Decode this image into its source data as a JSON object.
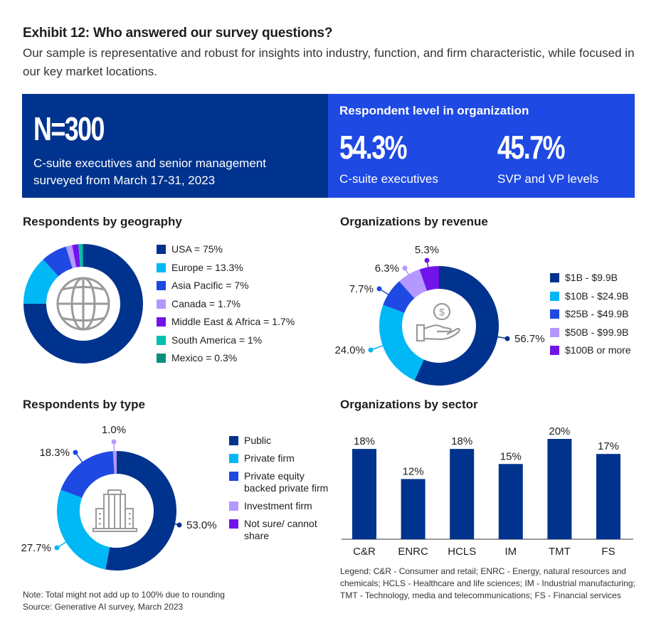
{
  "header": {
    "title": "Exhibit 12: Who answered our survey questions?",
    "subtitle": "Our sample is representative and robust for insights into industry, function, and firm characteristic, while focused in our key market locations."
  },
  "summary": {
    "sample_size": "N=300",
    "description": "C-suite executives and senior management surveyed from March 17-31, 2023"
  },
  "respondent_level": {
    "title": "Respondent level in organization",
    "stats": [
      {
        "value": "54.3%",
        "label": "C-suite executives"
      },
      {
        "value": "45.7%",
        "label": "SVP and VP levels"
      }
    ]
  },
  "colors": {
    "navy": "#00338D",
    "blue": "#1E49E2",
    "cyan": "#00B8F5",
    "lavender": "#B497FF",
    "purple": "#7213EA",
    "teal": "#00C0AE",
    "dark_teal": "#098E7E",
    "icon_gray": "#9a9a9a"
  },
  "chart_data": [
    {
      "type": "pie",
      "title": "Respondents by geography",
      "center_icon": "globe-icon",
      "legend_position": "right",
      "categories": [
        "USA",
        "Europe",
        "Asia Pacific",
        "Canada",
        "Middle East & Africa",
        "South America",
        "Mexico"
      ],
      "values": [
        75,
        13.3,
        7,
        1.7,
        1.7,
        1,
        0.3
      ],
      "legend_labels": [
        "USA = 75%",
        "Europe = 13.3%",
        "Asia Pacific = 7%",
        "Canada = 1.7%",
        "Middle East & Africa = 1.7%",
        "South America = 1%",
        "Mexico = 0.3%"
      ],
      "colors": [
        "#00338D",
        "#00B8F5",
        "#1E49E2",
        "#B497FF",
        "#7213EA",
        "#00C0AE",
        "#098E7E"
      ],
      "data_labels": []
    },
    {
      "type": "pie",
      "title": "Organizations by revenue",
      "center_icon": "money-hand-icon",
      "legend_position": "right",
      "categories": [
        "$1B - $9.9B",
        "$10B - $24.9B",
        "$25B - $49.9B",
        "$50B - $99.9B",
        "$100B or more"
      ],
      "values": [
        56.7,
        24.0,
        7.7,
        6.3,
        5.3
      ],
      "legend_labels": [
        "$1B - $9.9B",
        "$10B - $24.9B",
        "$25B - $49.9B",
        "$50B - $99.9B",
        "$100B or more"
      ],
      "colors": [
        "#00338D",
        "#00B8F5",
        "#1E49E2",
        "#B497FF",
        "#7213EA"
      ],
      "data_labels": [
        "56.7%",
        "24.0%",
        "7.7%",
        "6.3%",
        "5.3%"
      ]
    },
    {
      "type": "pie",
      "title": "Respondents by type",
      "center_icon": "building-icon",
      "legend_position": "right",
      "categories": [
        "Public",
        "Private firm",
        "Private equity backed private firm",
        "Investment firm",
        "Not sure/ cannot share"
      ],
      "values": [
        53.0,
        27.7,
        18.3,
        1.0,
        0
      ],
      "legend_labels": [
        "Public",
        "Private firm",
        "Private equity backed private firm",
        "Investment firm",
        "Not sure/ cannot share"
      ],
      "colors": [
        "#00338D",
        "#00B8F5",
        "#1E49E2",
        "#B497FF",
        "#7213EA"
      ],
      "data_labels": [
        "53.0%",
        "27.7%",
        "18.3%",
        "1.0%",
        ""
      ]
    },
    {
      "type": "bar",
      "title": "Organizations by sector",
      "categories": [
        "C&R",
        "ENRC",
        "HCLS",
        "IM",
        "TMT",
        "FS"
      ],
      "values": [
        18,
        12,
        18,
        15,
        20,
        17
      ],
      "data_labels": [
        "18%",
        "12%",
        "18%",
        "15%",
        "20%",
        "17%"
      ],
      "xlabel": "",
      "ylabel": "",
      "ylim": [
        0,
        20
      ],
      "grid": false,
      "color": "#00338D"
    }
  ],
  "footer": {
    "note": "Note: Total might not add up to 100% due to rounding",
    "source": "Source: Generative AI survey, March 2023",
    "sector_legend": "Legend: C&R - Consumer and retail; ENRC - Energy, natural resources and chemicals; HCLS - Healthcare and life sciences; IM - Industrial manufacturing; TMT - Technology, media and telecommunications; FS - Financial services"
  }
}
